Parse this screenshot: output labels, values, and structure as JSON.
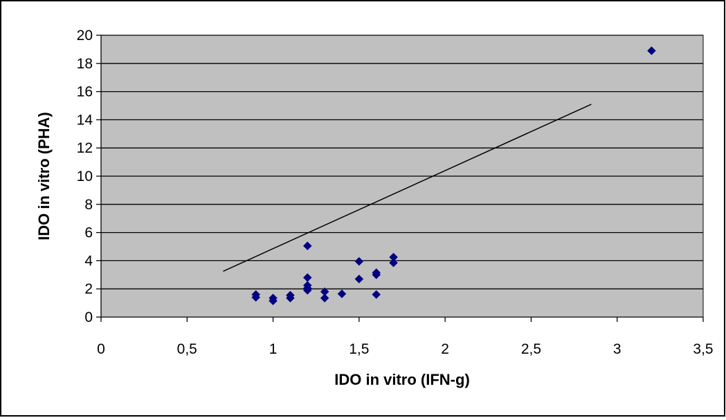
{
  "chart_data": {
    "type": "scatter",
    "title": "",
    "xlabel": "IDO in vitro (IFN-g)",
    "ylabel": "IDO in vitro (PHA)",
    "xlim": [
      0,
      3.5
    ],
    "ylim": [
      0,
      20
    ],
    "x_ticks": [
      0,
      0.5,
      1,
      1.5,
      2,
      2.5,
      3,
      3.5
    ],
    "x_tick_labels": [
      "0",
      "0,5",
      "1",
      "1,5",
      "2",
      "2,5",
      "3",
      "3,5"
    ],
    "y_ticks": [
      0,
      2,
      4,
      6,
      8,
      10,
      12,
      14,
      16,
      18,
      20
    ],
    "y_tick_labels": [
      "0",
      "2",
      "4",
      "6",
      "8",
      "10",
      "12",
      "14",
      "16",
      "18",
      "20"
    ],
    "grid": "horizontal",
    "legend": "none",
    "series": [
      {
        "marker": "diamond",
        "points": [
          {
            "x": 0.9,
            "y": 1.6
          },
          {
            "x": 0.9,
            "y": 1.4
          },
          {
            "x": 1.0,
            "y": 1.35
          },
          {
            "x": 1.0,
            "y": 1.15
          },
          {
            "x": 1.1,
            "y": 1.55
          },
          {
            "x": 1.1,
            "y": 1.35
          },
          {
            "x": 1.2,
            "y": 5.05
          },
          {
            "x": 1.2,
            "y": 2.8
          },
          {
            "x": 1.2,
            "y": 2.25
          },
          {
            "x": 1.2,
            "y": 2.05
          },
          {
            "x": 1.2,
            "y": 1.9
          },
          {
            "x": 1.3,
            "y": 1.8
          },
          {
            "x": 1.3,
            "y": 1.35
          },
          {
            "x": 1.4,
            "y": 1.65
          },
          {
            "x": 1.5,
            "y": 3.95
          },
          {
            "x": 1.5,
            "y": 2.7
          },
          {
            "x": 1.6,
            "y": 3.15
          },
          {
            "x": 1.6,
            "y": 3.0
          },
          {
            "x": 1.6,
            "y": 1.6
          },
          {
            "x": 1.7,
            "y": 4.25
          },
          {
            "x": 1.7,
            "y": 3.85
          },
          {
            "x": 3.2,
            "y": 18.9
          }
        ]
      }
    ],
    "trendline": {
      "type": "linear",
      "start": {
        "x": 0.71,
        "y": 3.25
      },
      "end": {
        "x": 2.85,
        "y": 15.1
      }
    },
    "colors": {
      "plot_background": "#c0c0c0",
      "marker": "#000080",
      "gridline": "#000000",
      "trendline": "#000000",
      "frame": "#000000"
    }
  }
}
